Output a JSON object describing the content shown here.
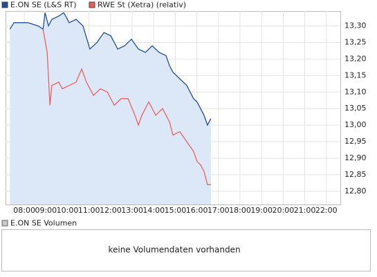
{
  "chart_data": {
    "type": "line",
    "xlim": [
      7.13,
      22.65
    ],
    "ylim": [
      12.76,
      13.345
    ],
    "xticks": [
      {
        "value": 8,
        "label": "08:00"
      },
      {
        "value": 9,
        "label": "09:00"
      },
      {
        "value": 10,
        "label": "10:00"
      },
      {
        "value": 11,
        "label": "11:00"
      },
      {
        "value": 12,
        "label": "12:00"
      },
      {
        "value": 13,
        "label": "13:00"
      },
      {
        "value": 14,
        "label": "14:00"
      },
      {
        "value": 15,
        "label": "15:00"
      },
      {
        "value": 16,
        "label": "16:00"
      },
      {
        "value": 17,
        "label": "17:00"
      },
      {
        "value": 18,
        "label": "18:00"
      },
      {
        "value": 19,
        "label": "19:00"
      },
      {
        "value": 20,
        "label": "20:00"
      },
      {
        "value": 21,
        "label": "21:00"
      },
      {
        "value": 22,
        "label": "22:00"
      }
    ],
    "yticks": [
      {
        "value": 12.8,
        "label": "12,80"
      },
      {
        "value": 12.85,
        "label": "12,85"
      },
      {
        "value": 12.9,
        "label": "12,90"
      },
      {
        "value": 12.95,
        "label": "12,95"
      },
      {
        "value": 13.0,
        "label": "13,00"
      },
      {
        "value": 13.05,
        "label": "13,05"
      },
      {
        "value": 13.1,
        "label": "13,10"
      },
      {
        "value": 13.15,
        "label": "13,15"
      },
      {
        "value": 13.2,
        "label": "13,20"
      },
      {
        "value": 13.25,
        "label": "13,25"
      },
      {
        "value": 13.3,
        "label": "13,30"
      }
    ],
    "grid": true,
    "series": [
      {
        "name": "E.ON SE (L&S RT)",
        "color": "#1f4e96",
        "area_color": "#dce8f8",
        "x": [
          7.33,
          7.52,
          7.84,
          8.16,
          8.64,
          8.87,
          8.96,
          9.12,
          9.28,
          9.6,
          9.83,
          10.08,
          10.4,
          10.72,
          11.04,
          11.37,
          11.69,
          12.01,
          12.33,
          12.65,
          12.97,
          13.29,
          13.61,
          13.93,
          14.25,
          14.57,
          14.73,
          14.89,
          15.21,
          15.53,
          15.69,
          15.85,
          16.01,
          16.17,
          16.33,
          16.49,
          16.65
        ],
        "values": [
          13.29,
          13.31,
          13.31,
          13.31,
          13.3,
          13.29,
          13.34,
          13.3,
          13.32,
          13.33,
          13.34,
          13.31,
          13.32,
          13.3,
          13.23,
          13.25,
          13.28,
          13.27,
          13.23,
          13.24,
          13.26,
          13.23,
          13.22,
          13.24,
          13.22,
          13.21,
          13.18,
          13.16,
          13.14,
          13.12,
          13.1,
          13.08,
          13.07,
          13.05,
          13.03,
          13.0,
          13.02
        ]
      },
      {
        "name": "RWE St (Xetra) (relativ)",
        "color": "#e8605a",
        "x": [
          8.87,
          9.06,
          9.19,
          9.28,
          9.6,
          9.76,
          10.08,
          10.4,
          10.66,
          10.88,
          11.21,
          11.53,
          11.85,
          12.17,
          12.49,
          12.81,
          13.13,
          13.29,
          13.45,
          13.77,
          14.09,
          14.41,
          14.73,
          14.89,
          15.21,
          15.53,
          15.85,
          16.01,
          16.17,
          16.33,
          16.49,
          16.65
        ],
        "values": [
          13.29,
          13.22,
          13.06,
          13.12,
          13.13,
          13.11,
          13.12,
          13.13,
          13.17,
          13.13,
          13.09,
          13.11,
          13.1,
          13.06,
          13.08,
          13.08,
          13.03,
          13.0,
          13.03,
          13.07,
          13.03,
          13.05,
          13.01,
          12.97,
          12.98,
          12.95,
          12.92,
          12.89,
          12.88,
          12.86,
          12.82,
          12.82
        ]
      }
    ]
  },
  "volume_panel": {
    "legend": "E.ON SE Volumen",
    "color": "#c8c8c8",
    "message": "keine Volumendaten vorhanden"
  }
}
